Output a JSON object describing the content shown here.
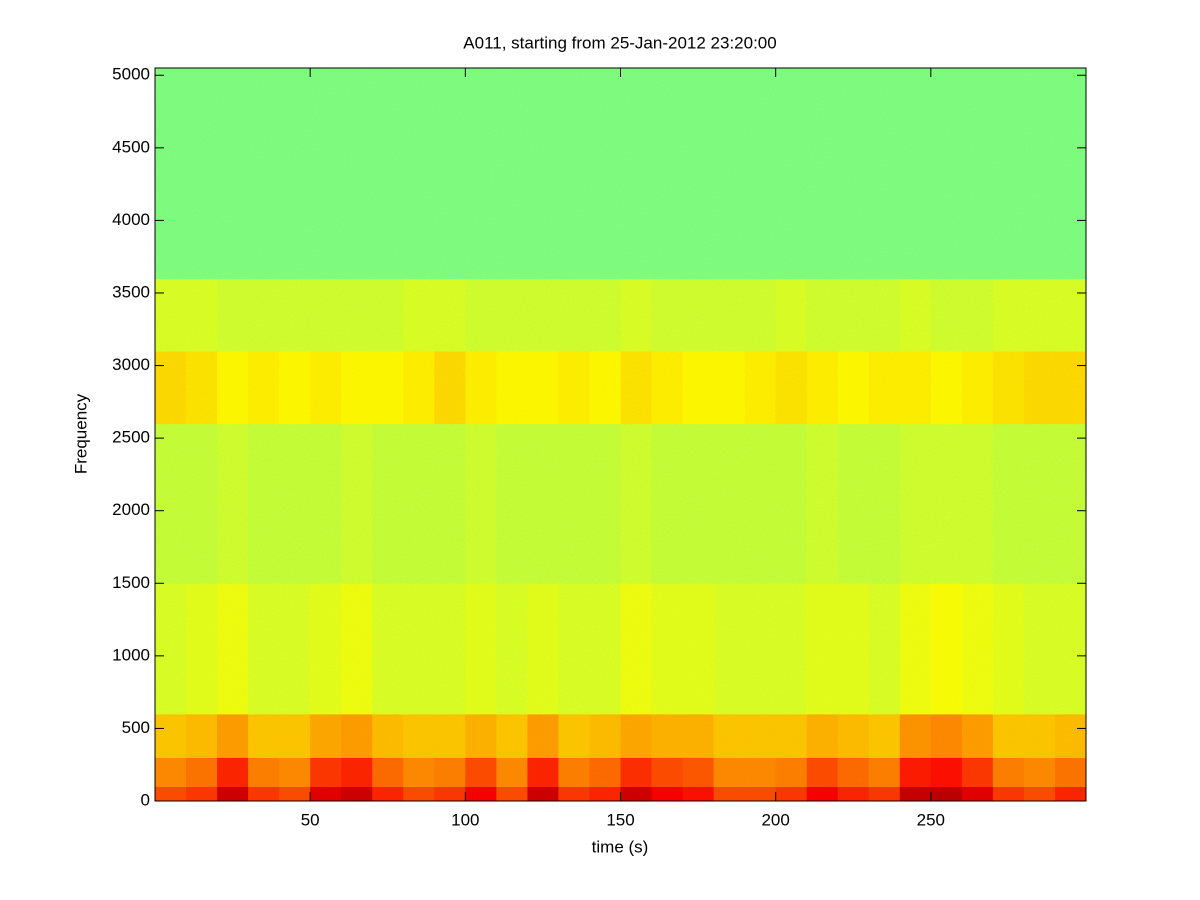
{
  "chart_data": {
    "type": "heatmap",
    "title": "A011, starting from 25-Jan-2012 23:20:00",
    "x_label": "time (s)",
    "y_label": "Frequency",
    "colormap": "jet",
    "clim": [
      0,
      1
    ],
    "xlim": [
      0,
      300
    ],
    "ylim": [
      0,
      5050
    ],
    "xticks": [
      50,
      100,
      150,
      200,
      250
    ],
    "yticks": [
      0,
      500,
      1000,
      1500,
      2000,
      2500,
      3000,
      3500,
      4000,
      4500,
      5000
    ],
    "x_edges": [
      0,
      10,
      20,
      30,
      40,
      50,
      60,
      70,
      80,
      90,
      100,
      110,
      120,
      130,
      140,
      150,
      160,
      170,
      180,
      190,
      200,
      210,
      220,
      230,
      240,
      250,
      260,
      270,
      280,
      290,
      300
    ],
    "y_edges": [
      0,
      100,
      300,
      600,
      1500,
      2600,
      3100,
      3600,
      5050
    ],
    "z": [
      [
        0.8,
        0.82,
        0.92,
        0.82,
        0.8,
        0.9,
        0.92,
        0.84,
        0.8,
        0.82,
        0.88,
        0.8,
        0.92,
        0.82,
        0.84,
        0.92,
        0.88,
        0.86,
        0.8,
        0.8,
        0.82,
        0.88,
        0.84,
        0.82,
        0.93,
        0.94,
        0.9,
        0.82,
        0.8,
        0.84
      ],
      [
        0.74,
        0.76,
        0.84,
        0.75,
        0.74,
        0.82,
        0.84,
        0.77,
        0.74,
        0.75,
        0.8,
        0.74,
        0.84,
        0.75,
        0.77,
        0.83,
        0.8,
        0.79,
        0.74,
        0.74,
        0.75,
        0.8,
        0.77,
        0.75,
        0.85,
        0.86,
        0.82,
        0.75,
        0.74,
        0.76
      ],
      [
        0.68,
        0.69,
        0.72,
        0.68,
        0.68,
        0.71,
        0.72,
        0.69,
        0.68,
        0.68,
        0.7,
        0.68,
        0.72,
        0.68,
        0.69,
        0.71,
        0.7,
        0.7,
        0.68,
        0.68,
        0.68,
        0.7,
        0.69,
        0.68,
        0.73,
        0.74,
        0.72,
        0.68,
        0.68,
        0.69
      ],
      [
        0.59,
        0.6,
        0.61,
        0.59,
        0.59,
        0.6,
        0.61,
        0.59,
        0.59,
        0.59,
        0.6,
        0.59,
        0.6,
        0.59,
        0.59,
        0.61,
        0.6,
        0.6,
        0.59,
        0.59,
        0.59,
        0.6,
        0.6,
        0.59,
        0.61,
        0.62,
        0.61,
        0.6,
        0.59,
        0.59
      ],
      [
        0.57,
        0.57,
        0.58,
        0.57,
        0.57,
        0.57,
        0.58,
        0.57,
        0.57,
        0.57,
        0.58,
        0.57,
        0.57,
        0.57,
        0.57,
        0.58,
        0.57,
        0.57,
        0.57,
        0.57,
        0.57,
        0.58,
        0.57,
        0.57,
        0.58,
        0.58,
        0.58,
        0.57,
        0.57,
        0.57
      ],
      [
        0.66,
        0.65,
        0.63,
        0.64,
        0.63,
        0.64,
        0.63,
        0.63,
        0.64,
        0.66,
        0.64,
        0.63,
        0.63,
        0.64,
        0.63,
        0.65,
        0.64,
        0.63,
        0.63,
        0.64,
        0.65,
        0.64,
        0.63,
        0.64,
        0.64,
        0.63,
        0.64,
        0.65,
        0.66,
        0.66
      ],
      [
        0.59,
        0.59,
        0.58,
        0.58,
        0.58,
        0.58,
        0.58,
        0.58,
        0.59,
        0.59,
        0.58,
        0.58,
        0.58,
        0.58,
        0.58,
        0.59,
        0.58,
        0.58,
        0.58,
        0.58,
        0.59,
        0.58,
        0.58,
        0.58,
        0.59,
        0.58,
        0.58,
        0.59,
        0.59,
        0.59
      ],
      [
        0.5,
        0.5,
        0.5,
        0.5,
        0.5,
        0.5,
        0.5,
        0.5,
        0.5,
        0.5,
        0.5,
        0.5,
        0.5,
        0.5,
        0.5,
        0.5,
        0.5,
        0.5,
        0.5,
        0.5,
        0.5,
        0.5,
        0.5,
        0.5,
        0.5,
        0.5,
        0.5,
        0.5,
        0.5,
        0.5
      ]
    ]
  }
}
